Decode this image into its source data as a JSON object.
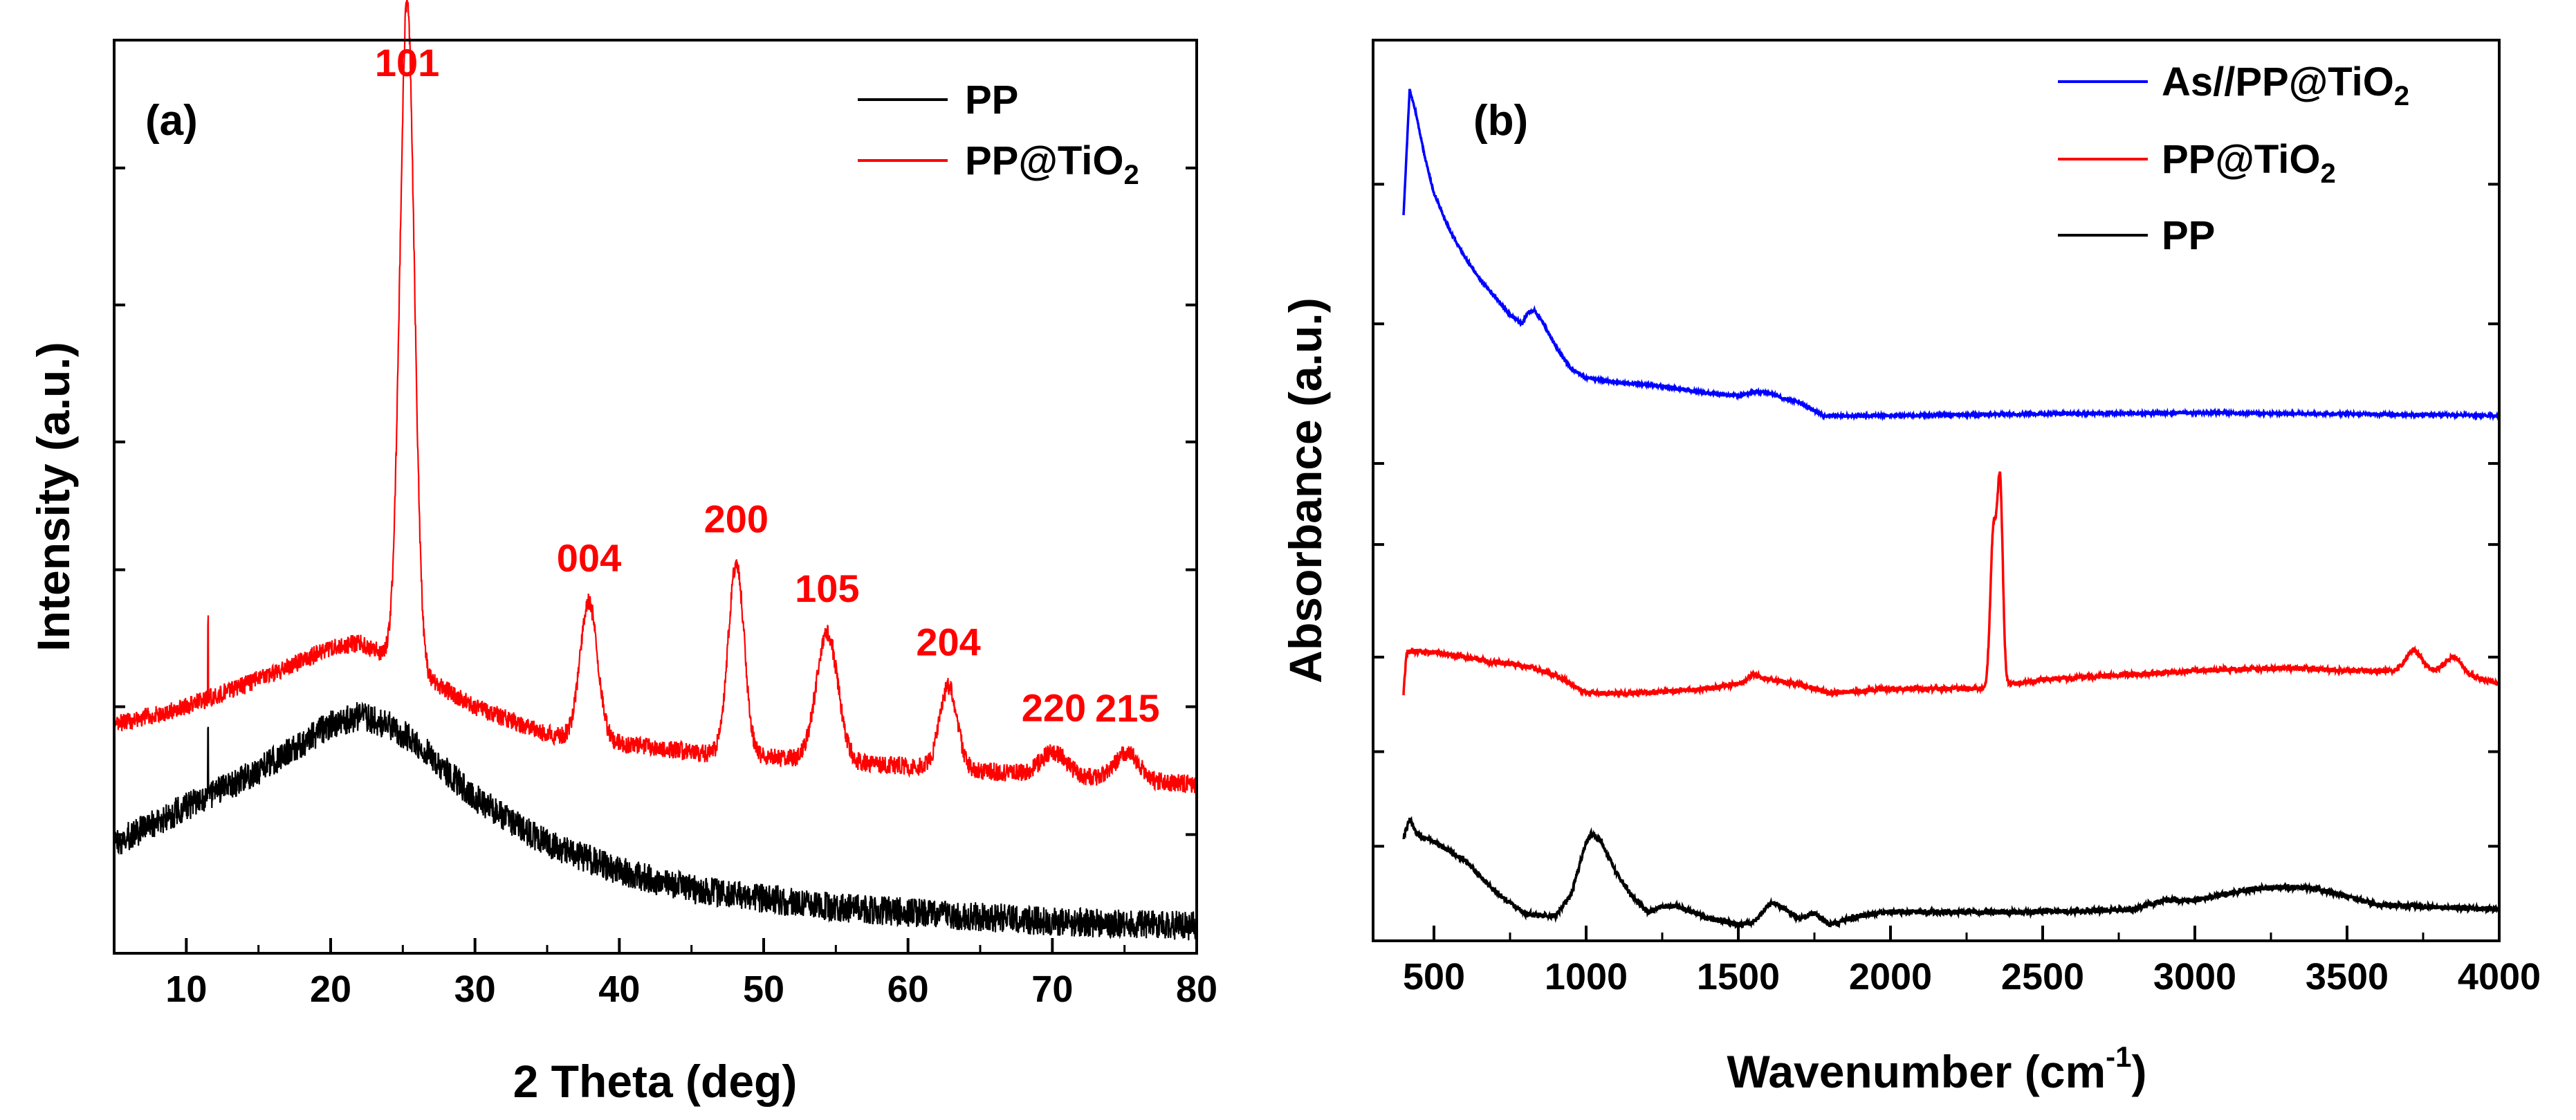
{
  "chart_data": [
    {
      "panel": "(a)",
      "type": "line",
      "xlabel": "2 Theta (deg)",
      "ylabel": "Intensity (a.u.)",
      "xlim": [
        5,
        80
      ],
      "xticks": [
        10,
        20,
        30,
        40,
        50,
        60,
        70,
        80
      ],
      "ylim": [
        0,
        100
      ],
      "legend_position": "top-right",
      "series": [
        {
          "name": "PP",
          "color": "#000000",
          "x": [
            5,
            10,
            15,
            18,
            20,
            22,
            24,
            26,
            28,
            30,
            35,
            40,
            45,
            50,
            55,
            60,
            65,
            70,
            75,
            80
          ],
          "y": [
            12,
            16,
            20,
            23,
            25,
            26,
            25,
            23,
            20,
            17,
            12,
            9,
            7,
            6,
            5,
            4.5,
            4,
            3.5,
            3.2,
            3
          ],
          "noise": 1.6,
          "spikes": [
            {
              "x": 11.5,
              "h": 7
            }
          ]
        },
        {
          "name": "PP@TiO2",
          "color": "#ff0000",
          "x": [
            5,
            10,
            15,
            18,
            20,
            22,
            24,
            30,
            35,
            40,
            45,
            50,
            55,
            60,
            65,
            70,
            75,
            80
          ],
          "y": [
            25,
            27,
            30,
            32,
            33.5,
            34,
            32.5,
            27,
            24,
            23,
            22,
            21.5,
            21,
            20.5,
            20,
            19.5,
            19,
            18.5
          ],
          "noise": 1.0,
          "spikes": [
            {
              "x": 11.5,
              "h": 9
            }
          ],
          "peaks": [
            {
              "x": 25.3,
              "h": 73,
              "w": 0.5
            },
            {
              "x": 37.9,
              "h": 15,
              "w": 0.6
            },
            {
              "x": 48.1,
              "h": 21,
              "w": 0.55
            },
            {
              "x": 54.4,
              "h": 14,
              "w": 0.75
            },
            {
              "x": 62.8,
              "h": 9,
              "w": 0.6
            },
            {
              "x": 70.1,
              "h": 2.5,
              "w": 0.9
            },
            {
              "x": 75.2,
              "h": 3,
              "w": 0.8
            }
          ]
        }
      ],
      "annotations": [
        {
          "label": "101",
          "x": 25.3
        },
        {
          "label": "004",
          "x": 37.9
        },
        {
          "label": "200",
          "x": 48.1
        },
        {
          "label": "105",
          "x": 54.4
        },
        {
          "label": "204",
          "x": 62.8
        },
        {
          "label": "220",
          "x": 70.1
        },
        {
          "label": "215",
          "x": 75.2
        }
      ]
    },
    {
      "panel": "(b)",
      "type": "line",
      "xlabel": "Wavenumber (cm",
      "xlabel_superscript": "-1",
      "xlabel_suffix": ")",
      "ylabel": "Absorbance (a.u.)",
      "xlim": [
        300,
        4000
      ],
      "xticks": [
        500,
        1000,
        1500,
        2000,
        2500,
        3000,
        3500,
        4000
      ],
      "ylim": [
        0,
        100
      ],
      "legend_position": "top-right",
      "series": [
        {
          "name": "As//PP@TiO2",
          "color": "#0000ff",
          "x": [
            400,
            420,
            440,
            470,
            500,
            550,
            600,
            650,
            700,
            750,
            790,
            810,
            830,
            860,
            900,
            950,
            1000,
            1100,
            1200,
            1300,
            1400,
            1500,
            1560,
            1600,
            1650,
            1700,
            1780,
            1800,
            2000,
            2500,
            3000,
            3500,
            4000
          ],
          "y": [
            80.5,
            94.5,
            92,
            87,
            83,
            79,
            76,
            73.5,
            71.5,
            69.5,
            68.5,
            69.8,
            70,
            68.5,
            66,
            63.5,
            62.5,
            62,
            61.8,
            61.3,
            60.8,
            60.5,
            61,
            60.8,
            60.2,
            59.8,
            58.3,
            58.3,
            58.3,
            58.5,
            58.6,
            58.5,
            58.3
          ],
          "noise": 0.12
        },
        {
          "name": "PP@TiO2",
          "color": "#ff0000",
          "x": [
            400,
            410,
            430,
            500,
            600,
            680,
            700,
            800,
            900,
            1000,
            1100,
            1200,
            1400,
            1500,
            1550,
            1600,
            1700,
            1800,
            2000,
            2200,
            2300,
            2400,
            2500,
            3000,
            3300,
            3500,
            3600,
            3700,
            3800,
            3900,
            3950,
            4000
          ],
          "y": [
            27.5,
            32,
            32.2,
            32,
            31.5,
            31,
            31,
            30.5,
            29.5,
            27.5,
            27.5,
            27.5,
            28,
            28.5,
            29.5,
            29,
            28.5,
            27.5,
            28,
            28,
            28,
            28.5,
            29,
            30,
            30.3,
            30,
            30,
            30,
            30,
            29.5,
            29,
            28.5
          ],
          "noise": 0.28,
          "peaks": [
            {
              "x": 2338,
              "h": 17,
              "w": 10
            },
            {
              "x": 2360,
              "h": 22,
              "w": 9
            },
            {
              "x": 3720,
              "h": 2.2,
              "w": 25
            },
            {
              "x": 3850,
              "h": 1.8,
              "w": 25
            }
          ]
        },
        {
          "name": "PP",
          "color": "#000000",
          "x": [
            400,
            420,
            440,
            460,
            500,
            600,
            700,
            800,
            850,
            900,
            950,
            1000,
            1020,
            1050,
            1100,
            1150,
            1200,
            1250,
            1300,
            1350,
            1400,
            1450,
            1500,
            1550,
            1600,
            1620,
            1700,
            1750,
            1800,
            1900,
            2000,
            2200,
            2400,
            2600,
            2800,
            2900,
            3000,
            3100,
            3200,
            3300,
            3400,
            3600,
            4000
          ],
          "y": [
            11.5,
            13.5,
            12,
            11.5,
            11,
            9,
            5.5,
            3,
            2.8,
            2.8,
            5,
            11,
            12,
            11,
            7.5,
            5,
            3.2,
            3.8,
            3.8,
            3.2,
            2.5,
            2.2,
            1.8,
            2,
            4,
            4.2,
            2.5,
            3,
            1.8,
            2.8,
            3.2,
            3.2,
            3.2,
            3.3,
            3.5,
            4.5,
            4.5,
            5.2,
            5.8,
            6,
            5.8,
            4,
            3.5
          ],
          "noise": 0.3
        }
      ]
    }
  ]
}
